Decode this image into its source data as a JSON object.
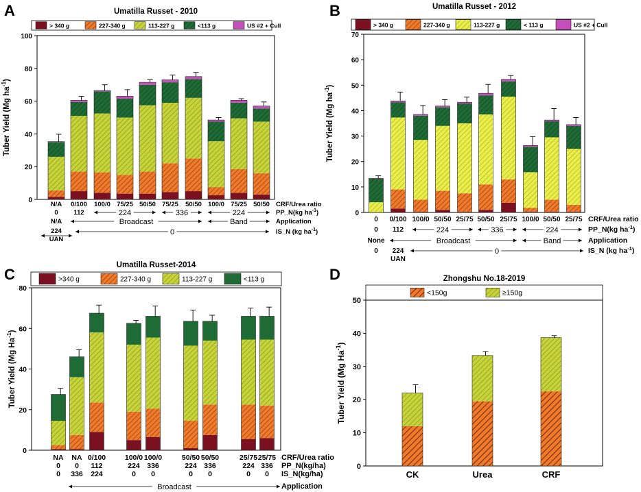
{
  "colors": {
    "c340": "#7a1020",
    "c227": "#f07a2a",
    "c113": "#c6d43a",
    "clt": "#1f6b35",
    "cull": "#c64fbc",
    "axis": "#000000"
  },
  "chart_data": [
    {
      "panel": "A",
      "type": "bar",
      "stacked": true,
      "title": "Umatilla Russet - 2010",
      "ylabel": "Tuber Yield (Mg ha",
      "ylabel_sup": "-1",
      "ylabel_close": ")",
      "ylim": [
        0,
        100
      ],
      "yticks": [
        0,
        20,
        40,
        60,
        80,
        100
      ],
      "legend": [
        "> 340 g",
        "227-340 g",
        "113-227 g",
        "<113 g",
        "US #2 + Cull"
      ],
      "categories": [
        "N/A",
        "0/100",
        "100/0",
        "75/25",
        "50/50",
        "75/25",
        "50/50",
        "100/0",
        "75/25",
        "50/50"
      ],
      "series": [
        {
          "name": ">340 g",
          "values": [
            1.5,
            5,
            4,
            3.5,
            3.5,
            4.5,
            5,
            2.5,
            4,
            3
          ]
        },
        {
          "name": "227-340 g",
          "values": [
            4,
            12,
            12.5,
            11.5,
            13.5,
            17.5,
            20,
            5,
            14.5,
            13
          ]
        },
        {
          "name": "113-227 g",
          "values": [
            20.5,
            34,
            36,
            35,
            40.5,
            37,
            37,
            28,
            31,
            31.5
          ]
        },
        {
          "name": "<113 g",
          "values": [
            9,
            8.5,
            13.5,
            11.5,
            12.5,
            12.5,
            11.5,
            12,
            9.5,
            8
          ]
        },
        {
          "name": "US #2 + Cull",
          "values": [
            0.3,
            1,
            0.5,
            1.5,
            1.5,
            1.5,
            1.5,
            1,
            1.5,
            1.5
          ]
        }
      ],
      "errors": [
        4.5,
        2.5,
        3.5,
        4,
        1.5,
        3,
        2.5,
        1.5,
        1,
        2.5
      ],
      "rows": [
        {
          "values": [
            "0",
            "112",
            "",
            "",
            "",
            "",
            "",
            "",
            "",
            ""
          ],
          "label": "PP_N(kg ha",
          "sup": "-1",
          "close": ")"
        }
      ],
      "row1_label": "CRF/Urea ratio",
      "spans_row2": [
        {
          "text": "224",
          "from": 2,
          "to": 4
        },
        {
          "text": "336",
          "from": 5,
          "to": 6
        },
        {
          "text": "224",
          "from": 7,
          "to": 9
        }
      ],
      "row3": {
        "na": "N/A",
        "label": "Application",
        "spans": [
          {
            "text": "Broadcast",
            "from": 1,
            "to": 6
          },
          {
            "text": "Band",
            "from": 7,
            "to": 9
          }
        ]
      },
      "row4": {
        "left_top": "224",
        "left_bottom": "UAN",
        "zero": "0",
        "label": "IS_N (kg ha",
        "sup": "-1",
        "close": ")"
      }
    },
    {
      "panel": "B",
      "type": "bar",
      "stacked": true,
      "title": "Umatilla Russet - 2012",
      "ylabel": "Tuber Yield (Mg ha",
      "ylabel_sup": "-1",
      "ylabel_close": ")",
      "ylim": [
        0,
        70
      ],
      "yticks": [
        0,
        10,
        20,
        30,
        40,
        50,
        60,
        70
      ],
      "legend": [
        "> 340 g",
        "227-340 g",
        "113-227 g",
        "< 113 g",
        "US #2 + Cull"
      ],
      "categories": [
        "0",
        "0/100",
        "100/0",
        "50/50",
        "25/75",
        "50/50",
        "25/75",
        "100/0",
        "50/50",
        "25/75"
      ],
      "series": [
        {
          "name": ">340 g",
          "values": [
            0,
            1.5,
            0.3,
            1,
            0.3,
            1,
            3.8,
            0.3,
            0.3,
            0.3
          ]
        },
        {
          "name": "227-340 g",
          "values": [
            0,
            7.5,
            4.7,
            7.5,
            7.2,
            10,
            9.2,
            1.5,
            4.7,
            2.7
          ]
        },
        {
          "name": "113-227 g",
          "values": [
            4,
            28.3,
            23.5,
            25.5,
            27.5,
            27.5,
            32.5,
            14,
            24.5,
            22
          ]
        },
        {
          "name": "< 113 g",
          "values": [
            9.2,
            6,
            9.5,
            7.3,
            7.8,
            7.5,
            6,
            10,
            6.3,
            9
          ]
        },
        {
          "name": "US #2 + Cull",
          "values": [
            0.2,
            0.5,
            0.5,
            0.5,
            0.5,
            0.8,
            0.8,
            0.5,
            0.5,
            0.5
          ]
        }
      ],
      "errors": [
        1,
        3.5,
        3.5,
        2.5,
        2,
        3.5,
        1.5,
        3.5,
        4.5,
        2.8
      ],
      "row1_label": "CRF/Urea ratio",
      "row2": {
        "values": [
          "0",
          "112"
        ],
        "label": "PP_N(kg ha",
        "sup": "-1",
        "close": ")"
      },
      "spans_row2": [
        {
          "text": "224",
          "from": 2,
          "to": 4
        },
        {
          "text": "336",
          "from": 5,
          "to": 6
        },
        {
          "text": "224",
          "from": 7,
          "to": 9
        }
      ],
      "row3": {
        "none": "None",
        "label": "Application",
        "spans": [
          {
            "text": "Broadcast",
            "from": 1,
            "to": 6
          },
          {
            "text": "Band",
            "from": 7,
            "to": 9
          }
        ]
      },
      "row4": {
        "left": "0",
        "mid_top": "224",
        "mid_bottom": "UAN",
        "zero": "0",
        "label": "IS_N (kg ha",
        "sup": "-1",
        "close": ")"
      }
    },
    {
      "panel": "C",
      "type": "bar",
      "stacked": true,
      "title": "Umatilla Russet-2014",
      "ylabel": "Tuber Yield (Mg Ha",
      "ylabel_sup": "-1",
      "ylabel_close": ")",
      "ylim": [
        0,
        80
      ],
      "yticks": [
        0,
        20,
        40,
        60,
        80
      ],
      "legend": [
        ">340 g",
        "227-340 g",
        "113-227 g",
        "<113 g"
      ],
      "categories": [
        "NA",
        "NA",
        "0/100",
        "100/0",
        "100/0",
        "50/50",
        "50/50",
        "25/75",
        "25/75"
      ],
      "pp_n": [
        "0",
        "0",
        "112",
        "224",
        "336",
        "224",
        "336",
        "224",
        "336"
      ],
      "is_n": [
        "0",
        "336",
        "224",
        "0",
        "0",
        "0",
        "0",
        "0",
        "0"
      ],
      "series": [
        {
          "name": ">340 g",
          "values": [
            0.5,
            0.5,
            9,
            5,
            6.5,
            1,
            7.5,
            5.5,
            6
          ]
        },
        {
          "name": "227-340 g",
          "values": [
            2,
            7,
            14.5,
            14,
            14,
            13.5,
            15,
            17,
            16
          ]
        },
        {
          "name": "113-227 g",
          "values": [
            12,
            28.5,
            34.5,
            33,
            35,
            37,
            31.5,
            32,
            32.5
          ]
        },
        {
          "name": "<113 g",
          "values": [
            13,
            10,
            9.5,
            10.5,
            10.5,
            12,
            9.5,
            11.5,
            11.5
          ]
        }
      ],
      "errors": [
        3,
        3.5,
        4,
        1.5,
        5,
        5.5,
        3,
        4,
        4.5
      ],
      "row_labels": [
        "CRF/Urea ratio",
        "PP_N(kg/ha)",
        "IS_N(kg/ha)"
      ],
      "application": {
        "text": "Broadcast",
        "label": "Application"
      }
    },
    {
      "panel": "D",
      "type": "bar",
      "stacked": true,
      "title": "Zhongshu No.18-2019",
      "ylabel": "Tuber Yield (Mg Ha",
      "ylabel_sup": "-1",
      "ylabel_close": ")",
      "ylim": [
        0,
        50
      ],
      "yticks": [
        0,
        10,
        20,
        30,
        40,
        50
      ],
      "legend": [
        "<150g",
        "≥150g"
      ],
      "categories": [
        "CK",
        "Urea",
        "CRF"
      ],
      "series": [
        {
          "name": "<150g",
          "values": [
            12,
            19.5,
            22.5
          ]
        },
        {
          "name": "≥150g",
          "values": [
            10,
            13.8,
            16.2
          ]
        }
      ],
      "errors": [
        2.5,
        1.2,
        0.6
      ]
    }
  ]
}
